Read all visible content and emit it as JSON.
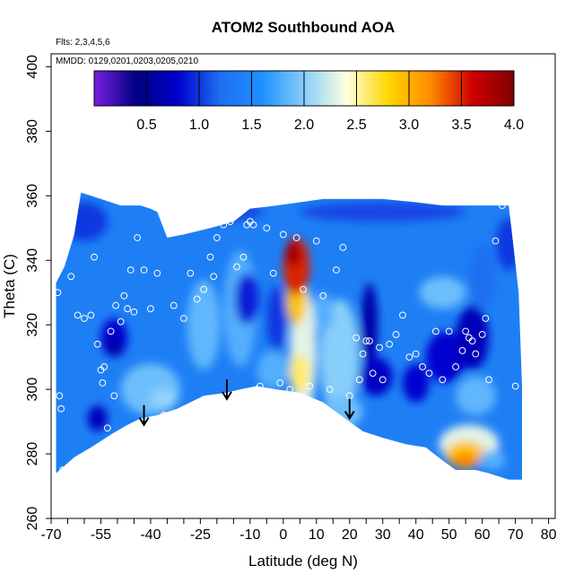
{
  "chart_data": {
    "type": "heatmap",
    "title": "ATOM2 Southbound AOA",
    "notes": [
      "Flts: 2,3,4,5,6",
      "MMDD: 0129,0201,0203,0205,0210"
    ],
    "xlabel": "Latitude (deg N)",
    "ylabel": "Theta (C)",
    "xlim": [
      -70,
      82
    ],
    "ylim": [
      260,
      404
    ],
    "x_ticks": [
      -70,
      -55,
      -40,
      -25,
      -10,
      0,
      10,
      20,
      30,
      40,
      50,
      60,
      70,
      80
    ],
    "x_ticks_unlabeled": [
      -65,
      -60,
      -50,
      -45,
      -35,
      -30,
      -20,
      -15,
      -5,
      5,
      15,
      25,
      35,
      45,
      55,
      65,
      75
    ],
    "y_ticks": [
      260,
      280,
      300,
      320,
      340,
      360,
      380,
      400
    ],
    "colorbar": {
      "range": [
        0,
        4
      ],
      "ticks": [
        "0.5",
        "1.0",
        "1.5",
        "2.0",
        "2.5",
        "3.0",
        "3.5",
        "4.0"
      ],
      "tick_values": [
        0.5,
        1.0,
        1.5,
        2.0,
        2.5,
        3.0,
        3.5,
        4.0
      ],
      "colors": [
        "#7a1fe0",
        "#000080",
        "#0000cd",
        "#1e6ff0",
        "#1e90ff",
        "#87cefa",
        "#ffffe0",
        "#ffd700",
        "#ff8c00",
        "#d00000",
        "#800000"
      ]
    },
    "field_outline": {
      "lat": [
        -68.5,
        -63,
        -58,
        -52,
        -47,
        -43,
        -38,
        -32,
        -24,
        -17,
        -13,
        -8,
        -2,
        5,
        12,
        20,
        24,
        30,
        37,
        43,
        48,
        52,
        58,
        62,
        68,
        72,
        72,
        71,
        68,
        63,
        55,
        48,
        40,
        30,
        20,
        12,
        5,
        -2,
        -10,
        -15,
        -22,
        -30,
        -35,
        -38,
        -40,
        -43,
        -46,
        -49,
        -52,
        -55,
        -58,
        -61,
        -63,
        -66,
        -68.5
      ],
      "theta": [
        274,
        279,
        282,
        286,
        289,
        291,
        292,
        294,
        298,
        299,
        300,
        301,
        300,
        299,
        296,
        290,
        287,
        285,
        283,
        282,
        278,
        275,
        275,
        274,
        272,
        272,
        301,
        330,
        357,
        357,
        357,
        357,
        358,
        359,
        359,
        359,
        358,
        357,
        356,
        352,
        350,
        348,
        347,
        355,
        356,
        357,
        357,
        357,
        358,
        359,
        360,
        361,
        348,
        338,
        333
      ]
    },
    "blobs": [
      {
        "aoa": 0.8,
        "lat": -51,
        "theta": 316,
        "rx": 4,
        "ry": 6
      },
      {
        "aoa": 0.6,
        "lat": -51,
        "theta": 313,
        "rx": 2.5,
        "ry": 3
      },
      {
        "aoa": 0.7,
        "lat": -56,
        "theta": 291,
        "rx": 3,
        "ry": 4
      },
      {
        "aoa": 1.9,
        "lat": -40,
        "theta": 300,
        "rx": 9,
        "ry": 8
      },
      {
        "aoa": 2.05,
        "lat": -36,
        "theta": 297,
        "rx": 4,
        "ry": 3
      },
      {
        "aoa": 1.85,
        "lat": -24,
        "theta": 320,
        "rx": 5,
        "ry": 14
      },
      {
        "aoa": 1.8,
        "lat": -13,
        "theta": 325,
        "rx": 5,
        "ry": 18
      },
      {
        "aoa": 0.9,
        "lat": -11,
        "theta": 328,
        "rx": 3.5,
        "ry": 8
      },
      {
        "aoa": 1.0,
        "lat": -2,
        "theta": 322,
        "rx": 3,
        "ry": 10
      },
      {
        "aoa": 1.8,
        "lat": -3,
        "theta": 306,
        "rx": 5,
        "ry": 6
      },
      {
        "aoa": 2.3,
        "lat": 6,
        "theta": 312,
        "rx": 4,
        "ry": 20
      },
      {
        "aoa": 2.6,
        "lat": 5,
        "theta": 305,
        "rx": 3,
        "ry": 6
      },
      {
        "aoa": 2.9,
        "lat": 4,
        "theta": 328,
        "rx": 3,
        "ry": 8
      },
      {
        "aoa": 3.5,
        "lat": 4,
        "theta": 338,
        "rx": 4,
        "ry": 9
      },
      {
        "aoa": 3.8,
        "lat": 3,
        "theta": 342,
        "rx": 2.5,
        "ry": 4
      },
      {
        "aoa": 2.0,
        "lat": 17,
        "theta": 310,
        "rx": 6,
        "ry": 18
      },
      {
        "aoa": 1.8,
        "lat": 12,
        "theta": 324,
        "rx": 3,
        "ry": 6
      },
      {
        "aoa": 1.9,
        "lat": 18,
        "theta": 293,
        "rx": 6,
        "ry": 5
      },
      {
        "aoa": 0.6,
        "lat": 26,
        "theta": 320,
        "rx": 2.5,
        "ry": 13
      },
      {
        "aoa": 0.75,
        "lat": 28,
        "theta": 304,
        "rx": 5,
        "ry": 6
      },
      {
        "aoa": 0.8,
        "lat": 40,
        "theta": 302,
        "rx": 4,
        "ry": 6
      },
      {
        "aoa": 0.8,
        "lat": 49,
        "theta": 310,
        "rx": 6,
        "ry": 8
      },
      {
        "aoa": 0.7,
        "lat": 57,
        "theta": 316,
        "rx": 5,
        "ry": 10
      },
      {
        "aoa": 1.2,
        "lat": 60,
        "theta": 335,
        "rx": 4,
        "ry": 10
      },
      {
        "aoa": 1.9,
        "lat": 48,
        "theta": 330,
        "rx": 7,
        "ry": 5
      },
      {
        "aoa": 1.85,
        "lat": 58,
        "theta": 298,
        "rx": 6,
        "ry": 6
      },
      {
        "aoa": 2.3,
        "lat": 56,
        "theta": 283,
        "rx": 9,
        "ry": 6
      },
      {
        "aoa": 2.9,
        "lat": 55,
        "theta": 280,
        "rx": 6,
        "ry": 4
      },
      {
        "aoa": 3.2,
        "lat": 55,
        "theta": 278,
        "rx": 4,
        "ry": 2.5
      },
      {
        "aoa": 1.8,
        "lat": 63,
        "theta": 278,
        "rx": 4,
        "ry": 3
      },
      {
        "aoa": 1.0,
        "lat": -60,
        "theta": 352,
        "rx": 7,
        "ry": 6
      },
      {
        "aoa": 1.05,
        "lat": -20,
        "theta": 355,
        "rx": 14,
        "ry": 3
      },
      {
        "aoa": 1.05,
        "lat": 30,
        "theta": 355,
        "rx": 25,
        "ry": 3
      },
      {
        "aoa": 1.0,
        "lat": 68,
        "theta": 345,
        "rx": 4,
        "ry": 8
      }
    ],
    "samples": {
      "lat": [
        -68,
        -67.5,
        -67,
        -66.5,
        -64,
        -62,
        -60,
        -58,
        -57,
        -56,
        -55,
        -54.5,
        -54,
        -53.5,
        -53,
        -52,
        -51,
        -50.5,
        -49,
        -48,
        -47,
        -46,
        -45,
        -44,
        -42,
        -40,
        -38,
        -36,
        -33,
        -30,
        -28,
        -26,
        -24,
        -22,
        -21,
        -20,
        -18,
        -16,
        -14,
        -12,
        -11,
        -10,
        -9,
        -8,
        -7,
        -5,
        -3,
        -1,
        0,
        2,
        4,
        6,
        8,
        10,
        12,
        14,
        16,
        18,
        20,
        22,
        23,
        24,
        25,
        26,
        27,
        29,
        30,
        32,
        34,
        36,
        38,
        40,
        42,
        44,
        46,
        48,
        50,
        52,
        54,
        55,
        56,
        57,
        58,
        60,
        61,
        62,
        64,
        66,
        70
      ],
      "theta": [
        330,
        298,
        294,
        275,
        335,
        323,
        322,
        323,
        341,
        314,
        306,
        302,
        307,
        283,
        288,
        318,
        298,
        326,
        321,
        329,
        325,
        337,
        324,
        347,
        337,
        325,
        336,
        292,
        326,
        322,
        336,
        328,
        331,
        341,
        335,
        347,
        351,
        352,
        338,
        341,
        351,
        352,
        351,
        300,
        301,
        350,
        336,
        302,
        348,
        300,
        347,
        331,
        301,
        346,
        329,
        300,
        337,
        344,
        298,
        316,
        303,
        311,
        315,
        315,
        305,
        313,
        303,
        314,
        317,
        323,
        310,
        311,
        307,
        305,
        318,
        303,
        318,
        307,
        312,
        318,
        316,
        315,
        311,
        317,
        322,
        303,
        346,
        357,
        301
      ]
    },
    "arrows": {
      "lat": [
        -42,
        -17,
        20
      ],
      "theta": [
        289,
        297,
        291
      ]
    }
  }
}
